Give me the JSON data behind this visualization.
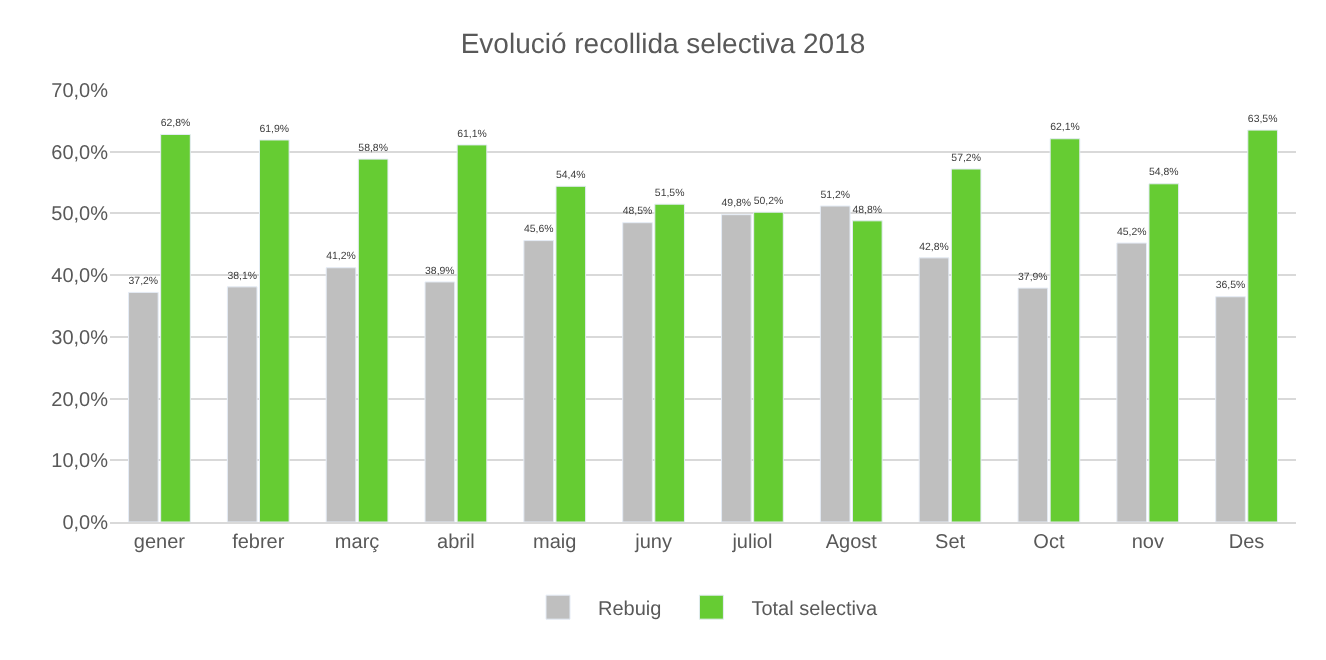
{
  "chart_data": {
    "type": "bar",
    "title": "Evolució recollida selectiva 2018",
    "categories": [
      "gener",
      "febrer",
      "març",
      "abril",
      "maig",
      "juny",
      "juliol",
      "Agost",
      "Set",
      "Oct",
      "nov",
      "Des"
    ],
    "series": [
      {
        "name": "Rebuig",
        "color": "#bfbfbf",
        "values": [
          37.2,
          38.1,
          41.2,
          38.9,
          45.6,
          48.5,
          49.8,
          51.2,
          42.8,
          37.9,
          45.2,
          36.5
        ],
        "value_labels": [
          "37,2%",
          "38,1%",
          "41,2%",
          "38,9%",
          "45,6%",
          "48,5%",
          "49,8%",
          "51,2%",
          "42,8%",
          "37,9%",
          "45,2%",
          "36,5%"
        ]
      },
      {
        "name": "Total selectiva",
        "color": "#66cc33",
        "values": [
          62.8,
          61.9,
          58.8,
          61.1,
          54.4,
          51.5,
          50.2,
          48.8,
          57.2,
          62.1,
          54.8,
          63.5
        ],
        "value_labels": [
          "62,8%",
          "61,9%",
          "58,8%",
          "61,1%",
          "54,4%",
          "51,5%",
          "50,2%",
          "48,8%",
          "57,2%",
          "62,1%",
          "54,8%",
          "63,5%"
        ]
      }
    ],
    "ylim": [
      0,
      70
    ],
    "yticks": [
      {
        "value": 0,
        "label": "0,0%"
      },
      {
        "value": 10,
        "label": "10,0%"
      },
      {
        "value": 20,
        "label": "20,0%"
      },
      {
        "value": 30,
        "label": "30,0%"
      },
      {
        "value": 40,
        "label": "40,0%"
      },
      {
        "value": 50,
        "label": "50,0%"
      },
      {
        "value": 60,
        "label": "60,0%"
      },
      {
        "value": 70,
        "label": "70,0%"
      }
    ],
    "grid": "y",
    "legend": "bottom"
  }
}
